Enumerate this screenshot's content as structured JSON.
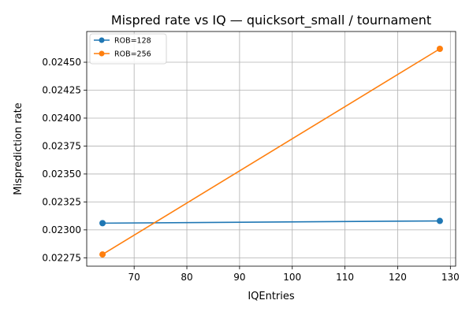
{
  "chart_data": {
    "type": "line",
    "title": "Mispred rate vs IQ — quicksort_small / tournament",
    "xlabel": "IQEntries",
    "ylabel": "Misprediction rate",
    "xlim": [
      61,
      131
    ],
    "ylim": [
      0.022675,
      0.024775
    ],
    "xticks": [
      70,
      80,
      90,
      100,
      110,
      120,
      130
    ],
    "yticks": [
      0.02275,
      0.023,
      0.02325,
      0.0235,
      0.02375,
      0.024,
      0.02425,
      0.0245
    ],
    "ytick_labels": [
      "0.02275",
      "0.02300",
      "0.02325",
      "0.02350",
      "0.02375",
      "0.02400",
      "0.02425",
      "0.02450"
    ],
    "grid": true,
    "legend_position": "top-left",
    "series": [
      {
        "name": "ROB=128",
        "color": "#1f77b4",
        "x": [
          64,
          128
        ],
        "y": [
          0.02306,
          0.02308
        ]
      },
      {
        "name": "ROB=256",
        "color": "#ff7f0e",
        "x": [
          64,
          128
        ],
        "y": [
          0.02278,
          0.02462
        ]
      }
    ]
  }
}
